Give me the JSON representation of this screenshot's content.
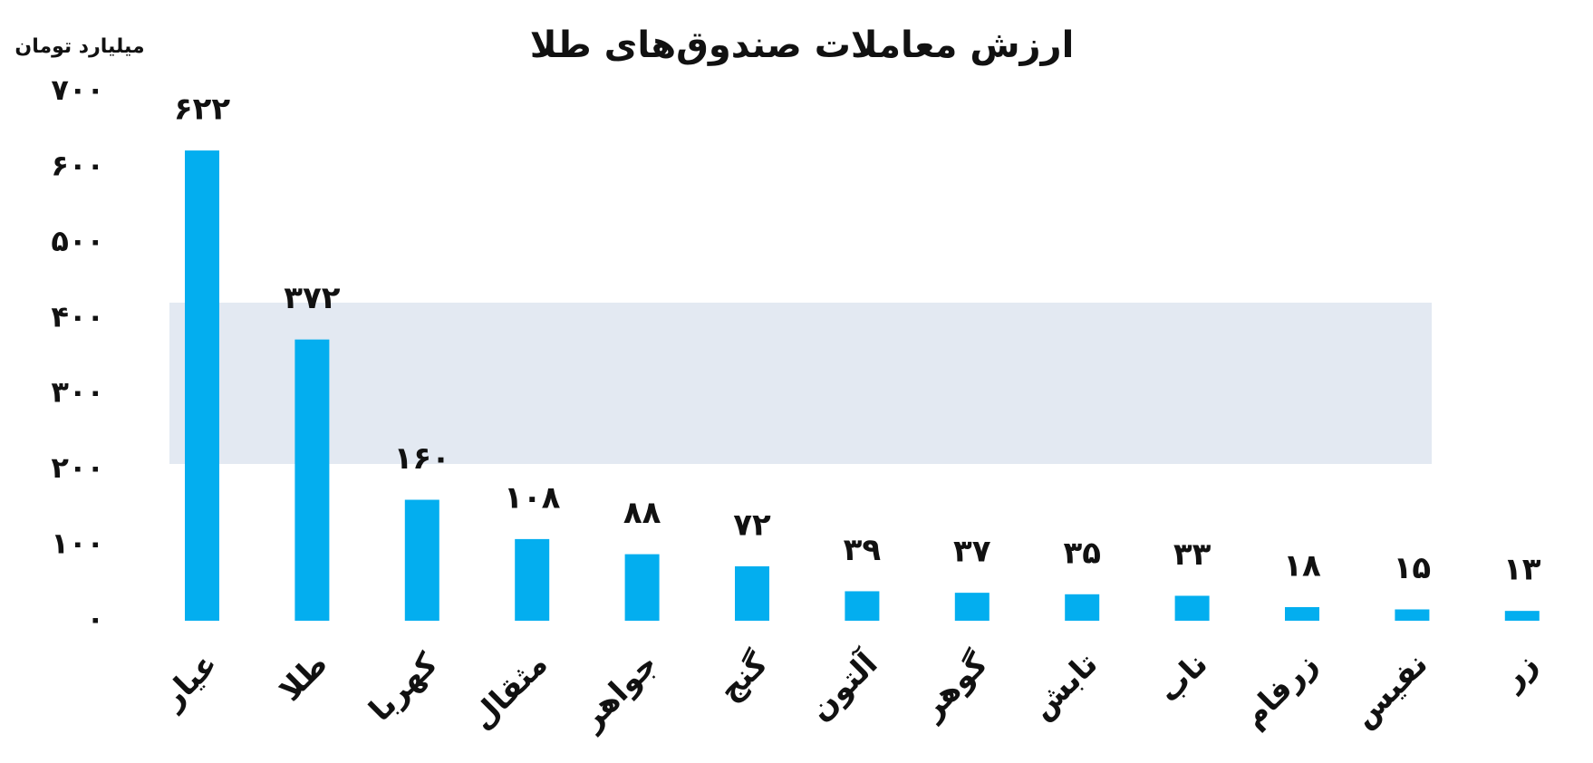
{
  "chart_data": {
    "type": "bar",
    "title": "ارزش معاملات صندوق‌های طلا",
    "y_label": "میلیارد تومان",
    "categories": [
      "عیار",
      "طلا",
      "کهربا",
      "مثقال",
      "جواهر",
      "گنج",
      "آلتون",
      "گوهر",
      "تابش",
      "ناب",
      "زرفام",
      "نفیس",
      "زر"
    ],
    "values": [
      622,
      372,
      160,
      108,
      88,
      72,
      39,
      37,
      35,
      33,
      18,
      15,
      13
    ],
    "value_labels": [
      "۶۲۲",
      "۳۷۲",
      "۱۶۰",
      "۱۰۸",
      "۸۸",
      "۷۲",
      "۳۹",
      "۳۷",
      "۳۵",
      "۳۳",
      "۱۸",
      "۱۵",
      "۱۳"
    ],
    "color": "#03aeef",
    "ylim": [
      0,
      700
    ],
    "yticks": [
      {
        "value": 0,
        "label": "۰"
      },
      {
        "value": 100,
        "label": "۱۰۰"
      },
      {
        "value": 200,
        "label": "۲۰۰"
      },
      {
        "value": 300,
        "label": "۳۰۰"
      },
      {
        "value": 400,
        "label": "۴۰۰"
      },
      {
        "value": 500,
        "label": "۵۰۰"
      },
      {
        "value": 600,
        "label": "۶۰۰"
      },
      {
        "value": 700,
        "label": "۷۰۰"
      }
    ],
    "grid": false
  }
}
